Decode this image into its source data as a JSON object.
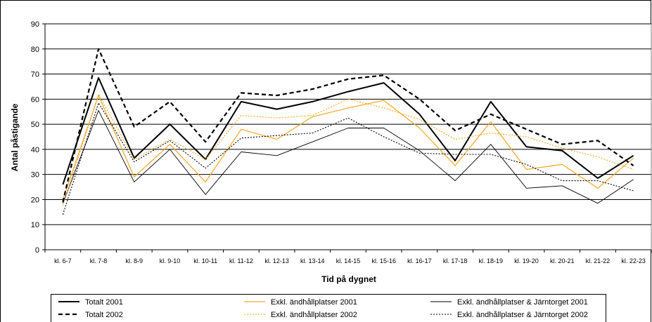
{
  "chart_data": {
    "type": "line",
    "xlabel": "Tid på dygnet",
    "ylabel": "Antal påstigande",
    "ylim": [
      0,
      90
    ],
    "yticks": [
      0,
      10,
      20,
      30,
      40,
      50,
      60,
      70,
      80,
      90
    ],
    "grid": true,
    "legend_position": "bottom",
    "categories": [
      "kl. 6-7",
      "kl. 7-8",
      "kl. 8-9",
      "kl. 9-10",
      "kl. 10-11",
      "kl. 11-12",
      "kl. 12-13",
      "kl. 13-14",
      "kl. 14-15",
      "kl. 15-16",
      "kl. 16-17",
      "kl. 17-18",
      "kl. 18-19",
      "kl. 19-20",
      "kl. 20-21",
      "kl. 21-22",
      "kl. 22-23"
    ],
    "series": [
      {
        "name": "Totalt 2001",
        "color": "#000000",
        "style": "solid-thick",
        "values": [
          26,
          68.5,
          36.5,
          50,
          36,
          59,
          56,
          59,
          63,
          66.5,
          54,
          35.5,
          59,
          41,
          39.5,
          28.5,
          37.5
        ]
      },
      {
        "name": "Exkl. ändhållplatser 2001",
        "color": "#f5a623",
        "style": "solid",
        "values": [
          20,
          61.5,
          29,
          42,
          27,
          48,
          44,
          53,
          56.5,
          59.5,
          48.5,
          33.5,
          51,
          32,
          34,
          24.5,
          36.5
        ]
      },
      {
        "name": "Exkl. ändhållplatser & Järntorget 2001",
        "color": "#000000",
        "style": "solid-thin",
        "values": [
          18.5,
          55.5,
          27,
          40,
          22,
          39,
          37.5,
          43,
          48.5,
          48.5,
          39.5,
          27.5,
          42,
          24.5,
          25.5,
          18.5,
          28
        ]
      },
      {
        "name": "Totalt 2002",
        "color": "#000000",
        "style": "dashed-thick",
        "values": [
          19,
          80,
          49,
          59,
          43,
          62.5,
          61.5,
          64,
          68,
          69.5,
          60,
          47.5,
          54,
          48,
          42,
          43.5,
          33.5
        ]
      },
      {
        "name": "Exkl. ändhållplatser 2002",
        "color": "#f5a623",
        "style": "dotted",
        "values": [
          17.5,
          62,
          36,
          44,
          36,
          53.5,
          52.5,
          53.5,
          60,
          56.5,
          52,
          44,
          46.5,
          45,
          40.5,
          37,
          32
        ]
      },
      {
        "name": "Exkl. ändhållplatser & Järntorget 2002",
        "color": "#000000",
        "style": "dotted",
        "values": [
          14,
          58.5,
          35,
          43.5,
          32.5,
          44.5,
          45.5,
          46.5,
          52.5,
          45,
          38.5,
          38,
          38,
          34,
          27.5,
          27.5,
          23.5
        ]
      }
    ]
  }
}
